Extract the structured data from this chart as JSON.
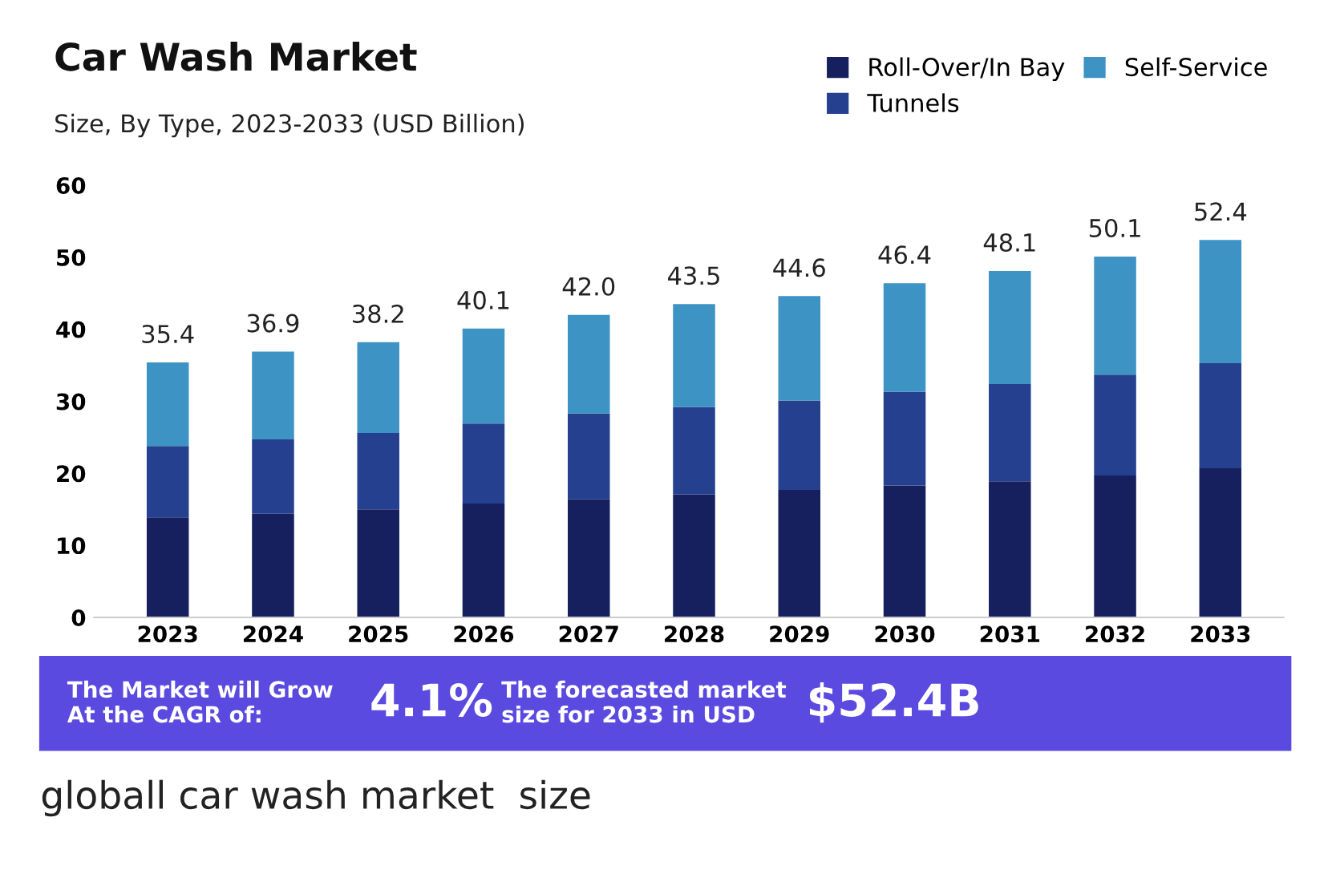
{
  "chart_data": {
    "type": "bar",
    "stacked": true,
    "title": "Car Wash Market",
    "subtitle": "Size, By Type, 2023-2033 (USD Billion)",
    "categories": [
      "2023",
      "2024",
      "2025",
      "2026",
      "2027",
      "2028",
      "2029",
      "2030",
      "2031",
      "2032",
      "2033"
    ],
    "series": [
      {
        "name": "Roll-Over/In Bay",
        "color": "#16205f",
        "values": [
          13.9,
          14.4,
          15.0,
          15.8,
          16.4,
          17.1,
          17.7,
          18.3,
          18.9,
          19.7,
          20.7
        ]
      },
      {
        "name": "Tunnels",
        "color": "#24408e",
        "values": [
          9.9,
          10.3,
          10.6,
          11.1,
          11.9,
          12.1,
          12.4,
          13.0,
          13.5,
          14.0,
          14.6
        ]
      },
      {
        "name": "Self-Service",
        "color": "#3d93c3",
        "values": [
          11.6,
          12.2,
          12.6,
          13.2,
          13.7,
          14.3,
          14.5,
          15.1,
          15.7,
          16.4,
          17.1
        ]
      }
    ],
    "totals": [
      "35.4",
      "36.9",
      "38.2",
      "40.1",
      "42.0",
      "43.5",
      "44.6",
      "46.4",
      "48.1",
      "50.1",
      "52.4"
    ],
    "ylim": [
      0,
      60
    ],
    "yticks": [
      0,
      10,
      20,
      30,
      40,
      50,
      60
    ],
    "grid": false,
    "legend": "top right",
    "annotations": [
      "The Market will Grow\nAt the CAGR of:",
      "4.1%",
      "The forecasted market\nsize for 2033 in USD",
      "$52.4B",
      "globall car wash market  size"
    ]
  }
}
